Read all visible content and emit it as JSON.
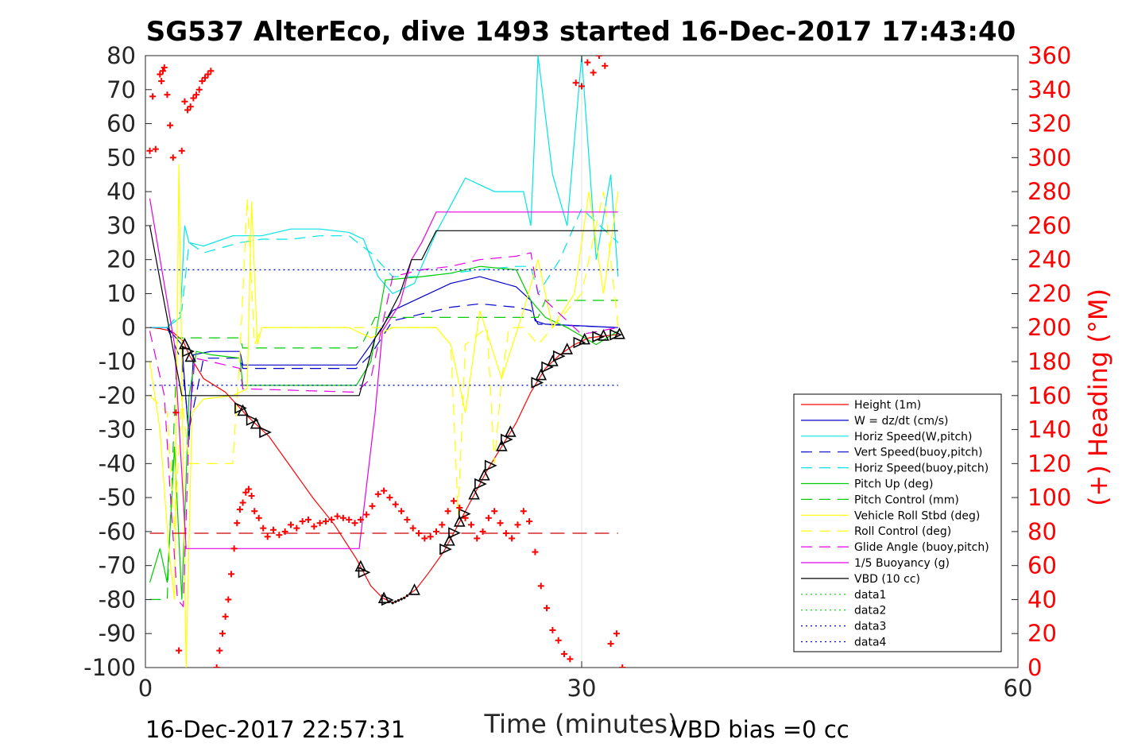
{
  "chart_data": {
    "type": "line",
    "title": "SG537 AlterEco, dive 1493 started 16-Dec-2017 17:43:40",
    "xlabel": "Time (minutes)",
    "ylabel_right": "(+) Heading (°M)",
    "xlim": [
      0,
      60
    ],
    "ylim": [
      -100,
      80
    ],
    "y2lim": [
      0,
      360
    ],
    "x_ticks": [
      "0",
      "30",
      "60"
    ],
    "x_tick_values": [
      0,
      30,
      60
    ],
    "y_ticks": [
      "80",
      "70",
      "60",
      "50",
      "40",
      "30",
      "20",
      "10",
      "0",
      "-10",
      "-20",
      "-30",
      "-40",
      "-50",
      "-60",
      "-70",
      "-80",
      "-90",
      "-100"
    ],
    "y_tick_values": [
      80,
      70,
      60,
      50,
      40,
      30,
      20,
      10,
      0,
      -10,
      -20,
      -30,
      -40,
      -50,
      -60,
      -70,
      -80,
      -90,
      -100
    ],
    "y2_ticks": [
      "360",
      "340",
      "320",
      "300",
      "280",
      "260",
      "240",
      "220",
      "200",
      "180",
      "160",
      "140",
      "120",
      "100",
      "80",
      "60",
      "40",
      "20",
      "0"
    ],
    "y2_tick_values": [
      360,
      340,
      320,
      300,
      280,
      260,
      240,
      220,
      200,
      180,
      160,
      140,
      120,
      100,
      80,
      60,
      40,
      20,
      0
    ],
    "grid": "x-only at 30",
    "legend_position": "lower-right",
    "footer_left": "16-Dec-2017 22:57:31",
    "footer_right": "VBD bias =0 cc",
    "series": [
      {
        "name": "Height (1m)",
        "color": "#ff0000",
        "style": "solid",
        "x": [
          0.3,
          1.0,
          1.8,
          2.6,
          3.0,
          4.0,
          5.5,
          7.0,
          8.5,
          10.0,
          11.5,
          13.0,
          14.5,
          15.5,
          16.3,
          17.0,
          17.8,
          18.6,
          19.5,
          20.5,
          21.5,
          22.5,
          23.5,
          24.5,
          25.5,
          26.5,
          27.5,
          28.5,
          29.5,
          30.5,
          31.5,
          32.5
        ],
        "y": [
          0,
          -0.3,
          -1.0,
          -4.0,
          -8.0,
          -15.0,
          -19.0,
          -26.0,
          -32.0,
          -41.0,
          -50.0,
          -58.0,
          -68.0,
          -76.0,
          -79.5,
          -81.0,
          -79.5,
          -77.0,
          -72.0,
          -66.0,
          -58.0,
          -50.0,
          -42.0,
          -35.0,
          -28.0,
          -19.0,
          -12.0,
          -8.0,
          -5.0,
          -3.0,
          -2.5,
          -2.0
        ]
      },
      {
        "name": "W = dz/dt (cm/s)",
        "color": "#0000cc",
        "style": "solid",
        "x": [
          0.3,
          1.5,
          2.5,
          3.0,
          3.3,
          4.5,
          6.5,
          6.7,
          14.5,
          15.5,
          17.0,
          19.0,
          21.0,
          23.0,
          25.5,
          26.5,
          26.8,
          27.5,
          32.5
        ],
        "y": [
          0,
          0,
          -5,
          -33,
          -8,
          -7,
          -7,
          -11,
          -11,
          -5,
          5,
          9,
          13,
          15,
          12,
          8,
          2,
          1,
          0
        ]
      },
      {
        "name": "Horiz Speed(W,pitch)",
        "color": "#00e5e5",
        "style": "solid",
        "x": [
          0.3,
          1.5,
          2.4,
          2.7,
          3.0,
          4.0,
          6.0,
          8.0,
          10.0,
          12.0,
          14.0,
          15.0,
          16.0,
          17.0,
          18.5,
          20.0,
          22.0,
          24.0,
          26.0,
          26.5,
          27.0,
          28.0,
          29.0,
          30.0,
          31.0,
          32.0,
          32.5
        ],
        "y": [
          0,
          0,
          3,
          30,
          25,
          24,
          27,
          27,
          29,
          29,
          28,
          26,
          15,
          10,
          13,
          28,
          44,
          40,
          40,
          30,
          80,
          45,
          30,
          80,
          20,
          45,
          15
        ]
      },
      {
        "name": "Vert Speed(buoy,pitch)",
        "color": "#0000cc",
        "style": "dashed",
        "x": [
          1.5,
          2.5,
          3.0,
          4.0,
          6.5,
          6.7,
          14.5,
          15.5,
          17.0,
          19.0,
          21.0,
          23.0,
          25.5,
          26.5,
          27.0,
          32.5
        ],
        "y": [
          0,
          -10,
          -30,
          -9,
          -9,
          -12,
          -12,
          -8,
          2,
          4,
          6,
          7,
          6,
          5,
          1,
          0
        ]
      },
      {
        "name": "Horiz Speed(buoy,pitch)",
        "color": "#00e5e5",
        "style": "dashed",
        "x": [
          1.5,
          2.5,
          3.0,
          4.0,
          6.5,
          8.0,
          10.0,
          12.0,
          14.0,
          15.5,
          17.0,
          19.0,
          21.0,
          23.0,
          25.5,
          26.5,
          27.0,
          28.5,
          30.0,
          32.5
        ],
        "y": [
          0,
          5,
          25,
          22,
          25,
          26,
          26,
          27,
          27,
          22,
          15,
          15,
          16,
          17,
          18,
          18,
          10,
          20,
          35,
          25
        ]
      },
      {
        "name": "Pitch Up (deg)",
        "color": "#00cc00",
        "style": "solid",
        "x": [
          0.3,
          1.0,
          1.5,
          2.0,
          2.5,
          3.0,
          3.5,
          4.5,
          6.5,
          6.7,
          14.5,
          15.5,
          16.5,
          19.0,
          21.0,
          23.0,
          25.5,
          26.5,
          27.5,
          29.0,
          31.0,
          32.5
        ],
        "y": [
          -75,
          -65,
          -75,
          -35,
          -80,
          -20,
          -7,
          -8,
          -9,
          -17,
          -17,
          -10,
          14,
          15,
          16,
          18,
          17,
          8,
          3,
          0,
          -5,
          -1
        ]
      },
      {
        "name": "Pitch Control (mm)",
        "color": "#00cc00",
        "style": "dashed",
        "x": [
          0.3,
          1.5,
          2.2,
          2.5,
          6.5,
          6.7,
          14.5,
          15.0,
          15.8,
          27.0,
          27.5,
          32.5
        ],
        "y": [
          -80,
          -80,
          -3,
          -3,
          -3,
          -6,
          -6,
          -4,
          3,
          3,
          8,
          8
        ]
      },
      {
        "name": "Vehicle Roll Stbd (deg)",
        "color": "#ffff00",
        "style": "solid",
        "x": [
          0.3,
          1.0,
          1.6,
          2.0,
          2.3,
          2.8,
          3.2,
          4.0,
          6.0,
          7.0,
          7.3,
          7.7,
          8.0,
          12.0,
          14.0,
          15.5,
          17.0,
          20.0,
          21.0,
          22.0,
          23.0,
          24.5,
          26.0,
          27.0,
          28.0,
          29.5,
          30.5,
          31.5,
          32.5
        ],
        "y": [
          -10,
          -30,
          -65,
          -80,
          48,
          -100,
          -25,
          -21,
          -20,
          -18,
          37,
          -5,
          0,
          0,
          0,
          -3,
          0,
          0,
          -5,
          -25,
          5,
          -15,
          5,
          20,
          0,
          10,
          40,
          10,
          40
        ]
      },
      {
        "name": "Roll Control (deg)",
        "color": "#ffff00",
        "style": "dashed",
        "x": [
          0.3,
          1.5,
          2.0,
          2.5,
          3.0,
          6.0,
          6.5,
          7.0,
          7.5,
          8.0,
          14.5,
          16.0,
          20.0,
          21.0,
          21.5,
          22.0,
          23.5,
          24.0,
          24.5,
          25.0,
          26.0,
          27.0,
          30.0,
          31.5,
          32.5
        ],
        "y": [
          -20,
          -25,
          -60,
          -20,
          -40,
          -40,
          -8,
          38,
          -5,
          0,
          0,
          0,
          0,
          -5,
          -55,
          -5,
          0,
          -40,
          -15,
          0,
          0,
          -5,
          10,
          40,
          0
        ]
      },
      {
        "name": "Glide Angle (buoy,pitch)",
        "color": "#e500e5",
        "style": "dashed",
        "x": [
          0.3,
          1.3,
          1.8,
          2.2,
          2.6,
          3.0,
          3.4,
          4.5,
          6.5,
          6.7,
          14.5,
          15.5,
          17.0,
          19.0,
          21.0,
          23.0,
          25.5,
          26.5,
          27.0,
          30.0,
          32.5
        ],
        "y": [
          -1,
          -20,
          -55,
          -80,
          -82,
          -30,
          -9,
          -10,
          -12,
          -18,
          -19,
          -15,
          15,
          17,
          18,
          20,
          21,
          22,
          10,
          -2,
          0
        ]
      },
      {
        "name": "1/5 Buoyancy (g)",
        "color": "#e500e5",
        "style": "solid",
        "x": [
          0.3,
          2.0,
          2.8,
          14.7,
          15.8,
          16.3,
          17.5,
          18.3,
          19.0,
          20.0,
          26.5,
          27.0,
          32.5
        ],
        "y": [
          38,
          -5,
          -65,
          -65,
          -25,
          -1,
          7,
          20,
          25,
          34,
          34,
          34,
          34
        ]
      },
      {
        "name": "VBD (10 cc)",
        "color": "#000000",
        "style": "solid",
        "x": [
          0.3,
          2.5,
          14.7,
          15.8,
          16.3,
          17.5,
          18.3,
          19.0,
          20.0,
          26.5,
          27.0,
          32.5
        ],
        "y": [
          30,
          -20,
          -20,
          -3,
          0,
          10,
          20,
          20,
          28.5,
          28.5,
          28.5,
          28.5
        ]
      },
      {
        "name": "data1",
        "color": "#00cc00",
        "style": "dotted",
        "x": [
          0.3,
          32.5
        ],
        "y": [
          17,
          17
        ]
      },
      {
        "name": "data2",
        "color": "#00cc00",
        "style": "dotted",
        "x": [
          0.3,
          32.5
        ],
        "y": [
          -17,
          -17
        ]
      },
      {
        "name": "data3",
        "color": "#0000cc",
        "style": "dotted",
        "x": [
          0.3,
          32.5
        ],
        "y": [
          17,
          17
        ]
      },
      {
        "name": "data4",
        "color": "#0000cc",
        "style": "dotted",
        "x": [
          0.3,
          32.5
        ],
        "y": [
          -17,
          -17
        ]
      },
      {
        "name": "",
        "color": "#cc0000",
        "style": "longdash",
        "x": [
          0.3,
          32.5
        ],
        "y": [
          -60.5,
          -60.5
        ]
      }
    ],
    "heading": {
      "color": "#ff0000",
      "marker": "+",
      "axis": "right",
      "x": [
        0.3,
        0.5,
        0.7,
        1.0,
        1.1,
        1.2,
        1.3,
        1.5,
        1.7,
        1.9,
        2.1,
        2.3,
        2.5,
        2.7,
        2.9,
        3.1,
        3.3,
        3.5,
        3.7,
        3.9,
        4.1,
        4.3,
        4.5,
        4.9,
        5.1,
        5.3,
        5.5,
        5.7,
        5.9,
        6.1,
        6.3,
        6.5,
        6.7,
        6.9,
        7.1,
        7.3,
        7.5,
        7.8,
        8.1,
        8.4,
        8.8,
        9.2,
        9.6,
        10.0,
        10.4,
        10.8,
        11.2,
        11.6,
        12.0,
        12.4,
        12.8,
        13.2,
        13.6,
        14.0,
        14.4,
        14.8,
        15.2,
        15.6,
        16.0,
        16.4,
        16.8,
        17.2,
        17.6,
        18.0,
        18.4,
        18.8,
        19.2,
        19.6,
        20.0,
        20.4,
        20.8,
        21.2,
        21.6,
        22.0,
        22.4,
        22.8,
        23.2,
        23.6,
        24.0,
        24.4,
        24.8,
        25.2,
        25.6,
        26.0,
        26.4,
        26.8,
        27.2,
        27.6,
        28.0,
        28.4,
        28.8,
        29.2,
        29.6,
        30.0,
        30.4,
        30.8,
        31.2,
        31.6,
        32.0,
        32.4,
        32.8
      ],
      "y": [
        304,
        336,
        305,
        349,
        345,
        351,
        353,
        337,
        319,
        300,
        150,
        10,
        304,
        333,
        328,
        330,
        335,
        337,
        340,
        345,
        347,
        349,
        351,
        0,
        10,
        20,
        30,
        40,
        55,
        70,
        85,
        93,
        97,
        103,
        105,
        101,
        92,
        88,
        82,
        77,
        81,
        78,
        80,
        84,
        82,
        86,
        87,
        83,
        85,
        86,
        87,
        89,
        88,
        87,
        85,
        87,
        90,
        95,
        102,
        104,
        100,
        96,
        92,
        87,
        82,
        79,
        76,
        77,
        80,
        84,
        92,
        98,
        94,
        88,
        84,
        76,
        80,
        88,
        92,
        85,
        79,
        76,
        84,
        92,
        86,
        68,
        48,
        35,
        22,
        16,
        8,
        5,
        344,
        342,
        356,
        350,
        360,
        354,
        14,
        20,
        0
      ]
    }
  },
  "colors": {
    "axis": "#262626",
    "heading": "#ff0000",
    "markers": "#000000"
  }
}
